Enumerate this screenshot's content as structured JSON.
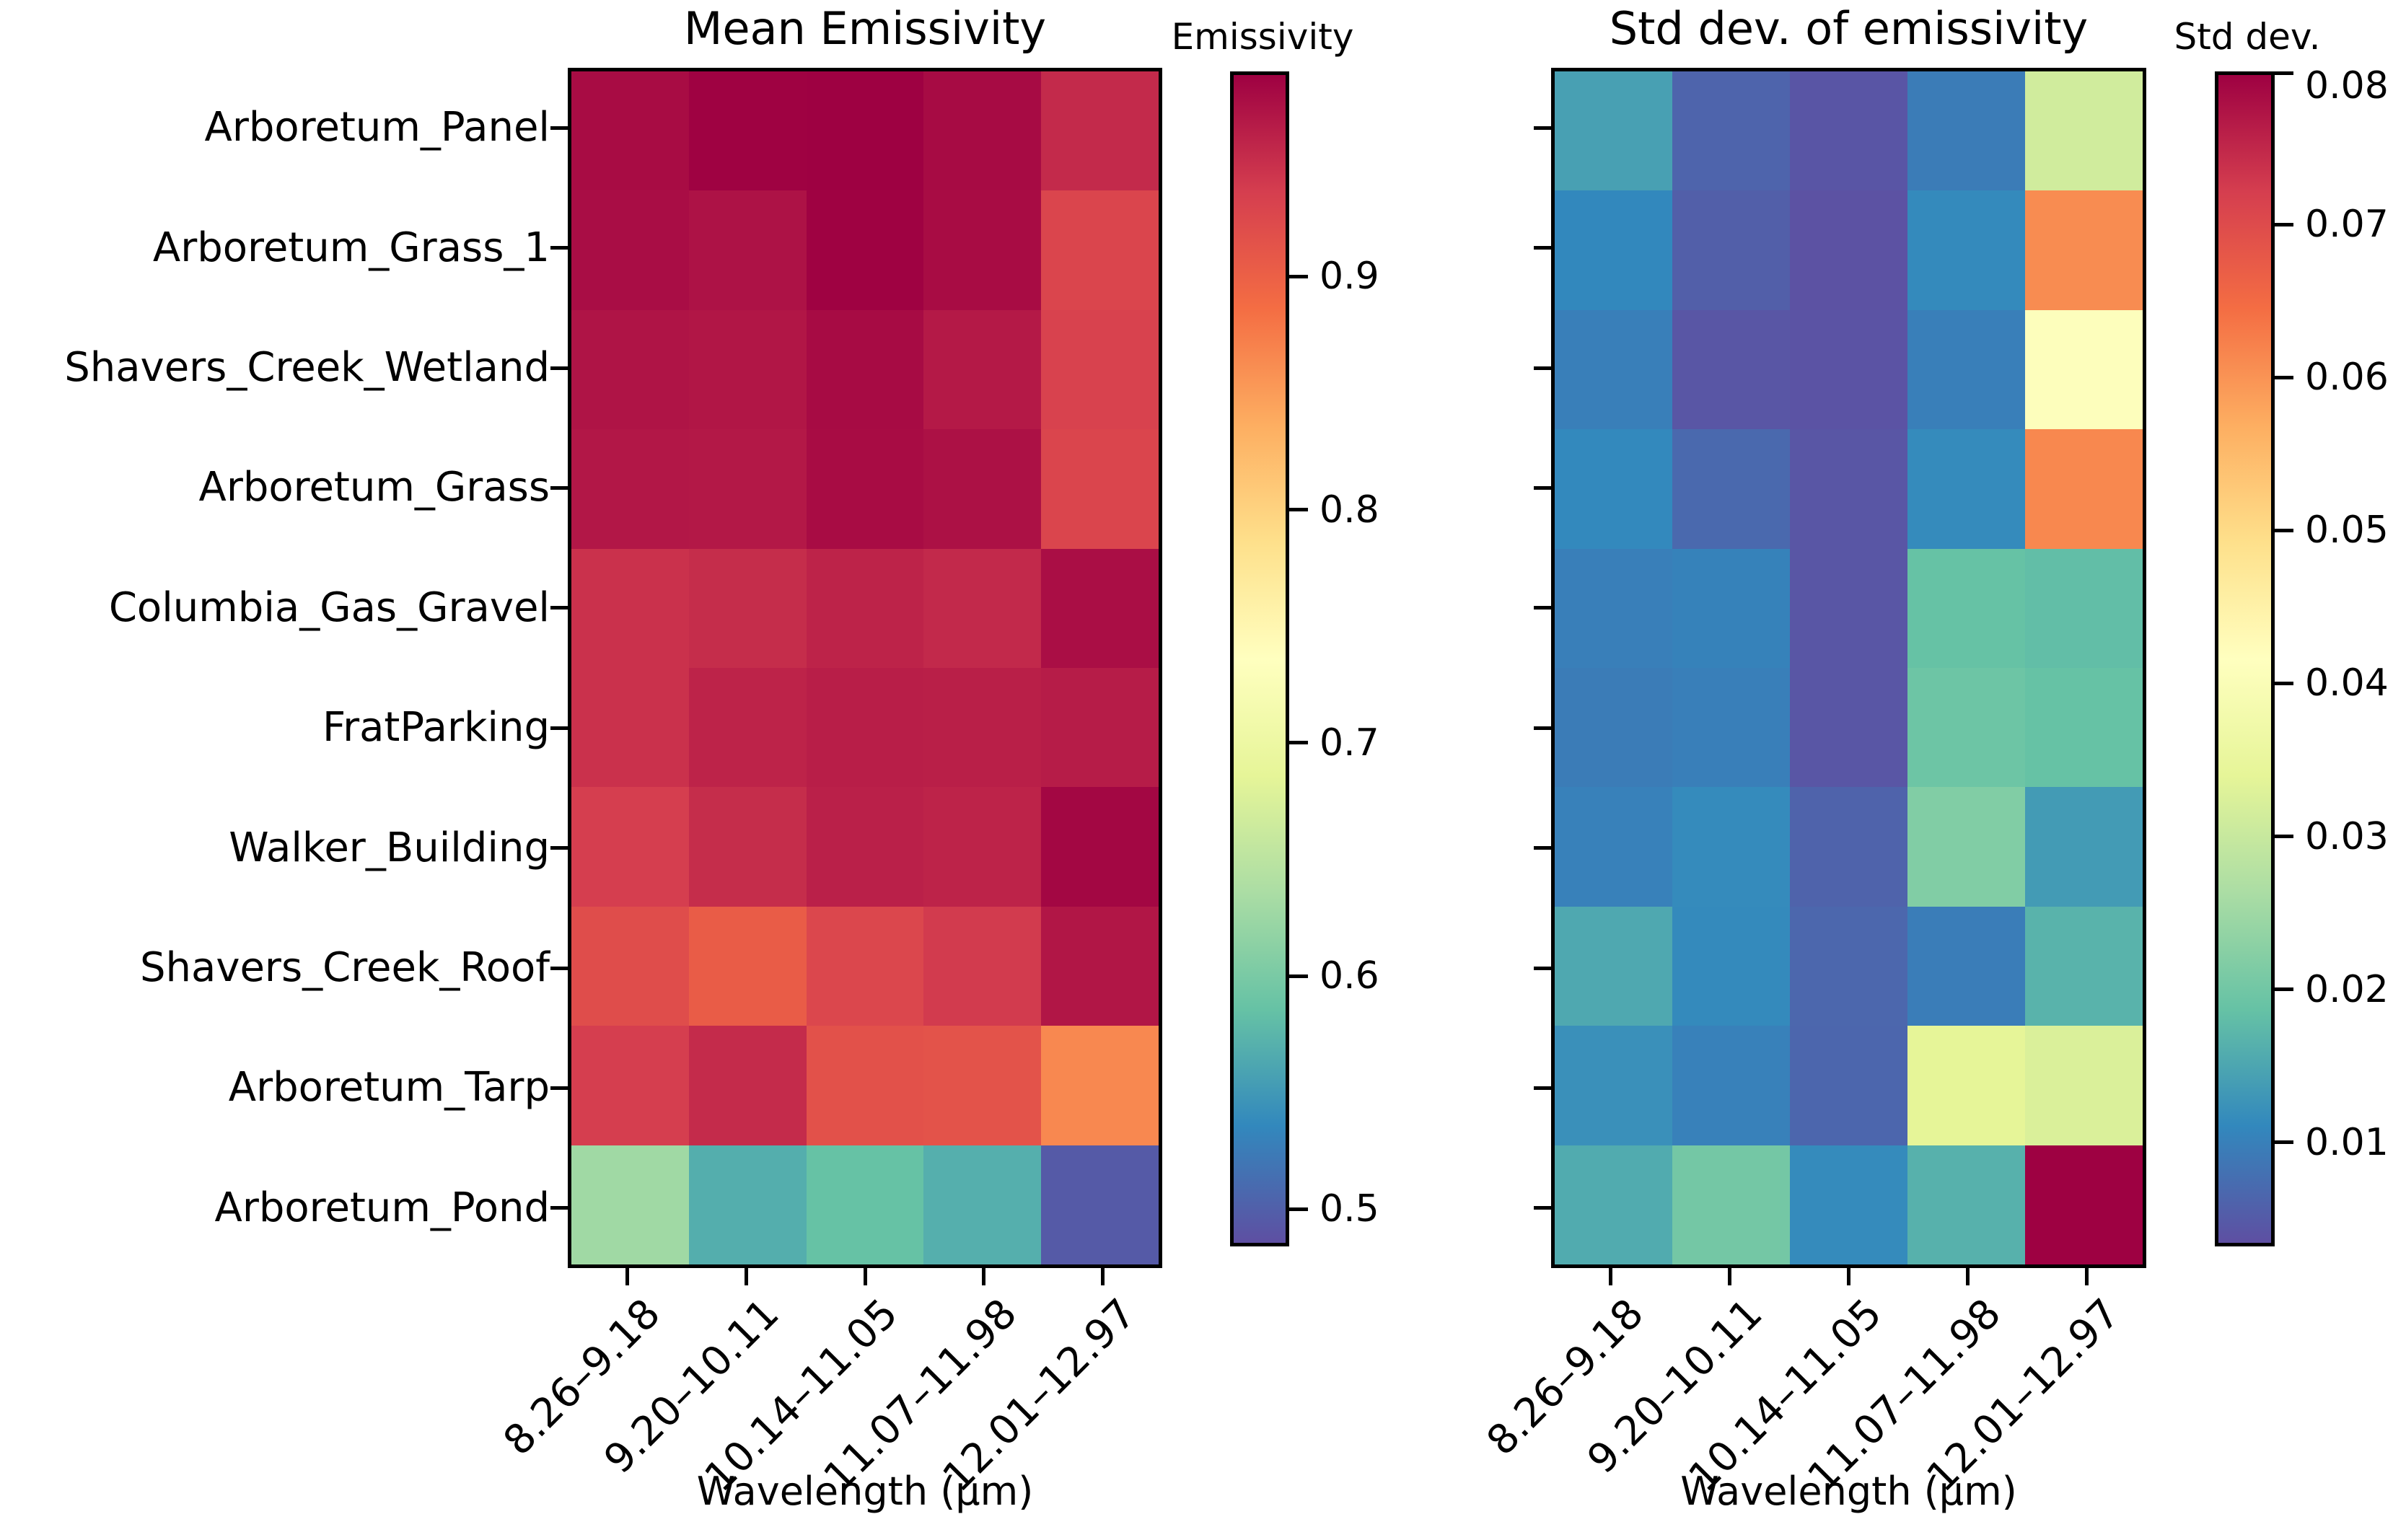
{
  "colormap_spectral_r_anchors": [
    "#5e4fa2",
    "#3288bd",
    "#66c2a5",
    "#abdda4",
    "#e6f598",
    "#ffffbf",
    "#fee08b",
    "#fdae61",
    "#f46d43",
    "#d53e4f",
    "#9e0142"
  ],
  "chart_data": [
    {
      "type": "heatmap",
      "title": "Mean Emissivity",
      "xlabel": "Wavelength (μm)",
      "colormap": "Spectral_r",
      "x_categories": [
        "8.26–9.18",
        "9.20–10.11",
        "10.14–11.05",
        "11.07–11.98",
        "12.01–12.97"
      ],
      "y_categories": [
        "Arboretum_Panel",
        "Arboretum_Grass_1",
        "Shavers_Creek_Wetland",
        "Arboretum_Grass",
        "Columbia_Gas_Gravel",
        "FratParking",
        "Walker_Building",
        "Shavers_Creek_Roof",
        "Arboretum_Tarp",
        "Arboretum_Pond"
      ],
      "values": [
        [
          0.979,
          0.987,
          0.988,
          0.98,
          0.954
        ],
        [
          0.978,
          0.974,
          0.987,
          0.979,
          0.93
        ],
        [
          0.972,
          0.971,
          0.98,
          0.968,
          0.933
        ],
        [
          0.97,
          0.969,
          0.979,
          0.975,
          0.93
        ],
        [
          0.948,
          0.952,
          0.96,
          0.955,
          0.977
        ],
        [
          0.948,
          0.96,
          0.964,
          0.963,
          0.966
        ],
        [
          0.938,
          0.952,
          0.962,
          0.96,
          0.983
        ],
        [
          0.922,
          0.905,
          0.928,
          0.94,
          0.971
        ],
        [
          0.938,
          0.953,
          0.917,
          0.915,
          0.866
        ],
        [
          0.627,
          0.567,
          0.585,
          0.568,
          0.494
        ]
      ],
      "colorbar": {
        "label": "Emissivity",
        "vmin": 0.484,
        "vmax": 0.988,
        "ticks": [
          "0.9",
          "0.8",
          "0.7",
          "0.6",
          "0.5"
        ],
        "tick_values": [
          0.9,
          0.8,
          0.7,
          0.6,
          0.5
        ]
      }
    },
    {
      "type": "heatmap",
      "title": "Std dev. of emissivity",
      "xlabel": "Wavelength (μm)",
      "colormap": "Spectral_r",
      "x_categories": [
        "8.26–9.18",
        "9.20–10.11",
        "10.14–11.05",
        "11.07–11.98",
        "12.01–12.97"
      ],
      "y_categories": [
        "Arboretum_Panel",
        "Arboretum_Grass_1",
        "Shavers_Creek_Wetland",
        "Arboretum_Grass",
        "Columbia_Gas_Gravel",
        "FratParking",
        "Walker_Building",
        "Shavers_Creek_Roof",
        "Arboretum_Tarp",
        "Arboretum_Pond"
      ],
      "values": [
        [
          0.0141,
          0.006,
          0.004,
          0.0093,
          0.031
        ],
        [
          0.0109,
          0.0053,
          0.0036,
          0.0112,
          0.061
        ],
        [
          0.0097,
          0.0041,
          0.0038,
          0.0096,
          0.041
        ],
        [
          0.011,
          0.0067,
          0.0041,
          0.0113,
          0.0615
        ],
        [
          0.0096,
          0.0101,
          0.0041,
          0.0186,
          0.018
        ],
        [
          0.0093,
          0.0097,
          0.0041,
          0.0193,
          0.0186
        ],
        [
          0.0099,
          0.0113,
          0.0059,
          0.0216,
          0.0134
        ],
        [
          0.0151,
          0.0112,
          0.0064,
          0.0094,
          0.0166
        ],
        [
          0.012,
          0.0099,
          0.0063,
          0.034,
          0.0324
        ],
        [
          0.0155,
          0.0201,
          0.0113,
          0.0163,
          0.08
        ]
      ],
      "colorbar": {
        "label": "Std dev.",
        "vmin": 0.0032,
        "vmax": 0.08,
        "ticks": [
          "0.08",
          "0.07",
          "0.06",
          "0.05",
          "0.04",
          "0.03",
          "0.02",
          "0.01"
        ],
        "tick_values": [
          0.08,
          0.07,
          0.06,
          0.05,
          0.04,
          0.03,
          0.02,
          0.01
        ]
      }
    }
  ]
}
